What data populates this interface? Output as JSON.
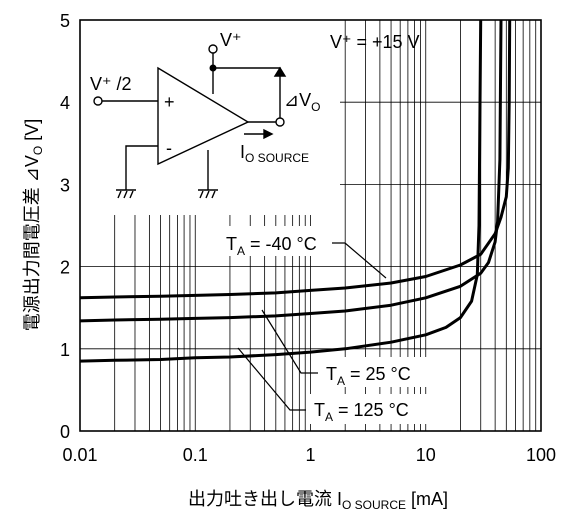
{
  "chart_data": {
    "type": "line",
    "xscale": "log",
    "xlim": [
      0.01,
      100
    ],
    "ylim": [
      0,
      5
    ],
    "grid": true,
    "x_ticks": [
      "0.01",
      "0.1",
      "1",
      "10",
      "100"
    ],
    "y_ticks": [
      "0",
      "1",
      "2",
      "3",
      "4",
      "5"
    ],
    "xlabel": {
      "main": "出力吐き出し電流 I",
      "sub": "O SOURCE",
      "unit": " [mA]"
    },
    "ylabel": {
      "main": "電源出力間電圧差 ⊿V",
      "sub": "O",
      "unit": " [V]"
    },
    "annotation": "V⁺ = +15 V",
    "series": [
      {
        "name": "TA = -40 °C",
        "label": {
          "pre": "T",
          "sub": "A",
          "post": " = -40 °C"
        },
        "x": [
          0.01,
          0.02,
          0.05,
          0.1,
          0.2,
          0.5,
          1,
          2,
          5,
          10,
          20,
          30,
          40,
          45,
          50,
          52,
          53,
          53.5
        ],
        "y": [
          1.62,
          1.63,
          1.64,
          1.65,
          1.66,
          1.68,
          1.71,
          1.74,
          1.8,
          1.88,
          2.02,
          2.15,
          2.4,
          2.6,
          2.85,
          3.2,
          4.0,
          5.0
        ]
      },
      {
        "name": "TA = 25 °C",
        "label": {
          "pre": "T",
          "sub": "A",
          "post": " = 25 °C"
        },
        "x": [
          0.01,
          0.02,
          0.05,
          0.1,
          0.2,
          0.5,
          1,
          2,
          5,
          10,
          20,
          30,
          35,
          40,
          42,
          44,
          45
        ],
        "y": [
          1.34,
          1.35,
          1.36,
          1.37,
          1.38,
          1.4,
          1.43,
          1.46,
          1.53,
          1.62,
          1.76,
          1.92,
          2.05,
          2.3,
          2.55,
          3.3,
          5.0
        ]
      },
      {
        "name": "TA = 125 °C",
        "label": {
          "pre": "T",
          "sub": "A",
          "post": " = 125 °C"
        },
        "x": [
          0.01,
          0.02,
          0.05,
          0.1,
          0.2,
          0.5,
          1,
          2,
          5,
          10,
          15,
          20,
          25,
          28,
          29,
          30
        ],
        "y": [
          0.85,
          0.86,
          0.87,
          0.89,
          0.9,
          0.93,
          0.96,
          1.0,
          1.08,
          1.17,
          1.26,
          1.38,
          1.58,
          1.9,
          2.5,
          5.0
        ]
      }
    ]
  },
  "inset": {
    "input_label": "V⁺ /2",
    "supply_label": "V⁺",
    "plus_sign": "+",
    "minus_sign": "-",
    "delta_label": {
      "main": "⊿V",
      "sub": "O"
    },
    "current_label": {
      "main": "I",
      "sub": "O SOURCE"
    }
  }
}
